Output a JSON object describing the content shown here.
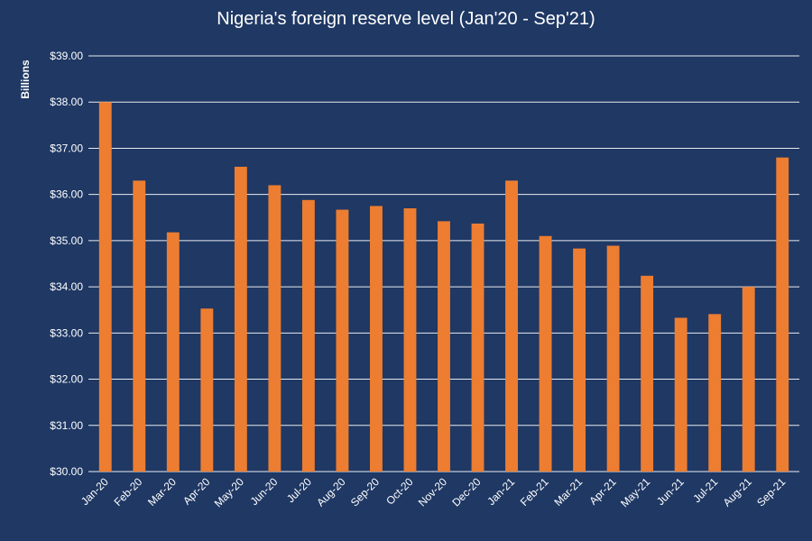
{
  "chart_data": {
    "type": "bar",
    "title": "Nigeria's foreign reserve level (Jan'20 - Sep'21)",
    "ylabel": "Billions",
    "xlabel": "",
    "ylim": [
      30,
      39
    ],
    "ytick_values": [
      30,
      31,
      32,
      33,
      34,
      35,
      36,
      37,
      38,
      39
    ],
    "ytick_labels": [
      "$30.00",
      "$31.00",
      "$32.00",
      "$33.00",
      "$34.00",
      "$35.00",
      "$36.00",
      "$37.00",
      "$38.00",
      "$39.00"
    ],
    "grid": true,
    "legend": "none",
    "categories": [
      "Jan-20",
      "Feb-20",
      "Mar-20",
      "Apr-20",
      "May-20",
      "Jun-20",
      "Jul-20",
      "Aug-20",
      "Sep-20",
      "Oct-20",
      "Nov-20",
      "Dec-20",
      "Jan-21",
      "Feb-21",
      "Mar-21",
      "Apr-21",
      "May-21",
      "Jun-21",
      "Jul-21",
      "Aug-21",
      "Sep-21"
    ],
    "values": [
      38.0,
      36.3,
      35.18,
      33.53,
      36.6,
      36.2,
      35.88,
      35.67,
      35.75,
      35.7,
      35.42,
      35.37,
      36.3,
      35.1,
      34.83,
      34.89,
      34.24,
      33.33,
      33.41,
      34.0,
      36.8
    ],
    "bar_color": "#ed7d31",
    "background_color": "#1f3864",
    "text_color": "#ffffff"
  }
}
